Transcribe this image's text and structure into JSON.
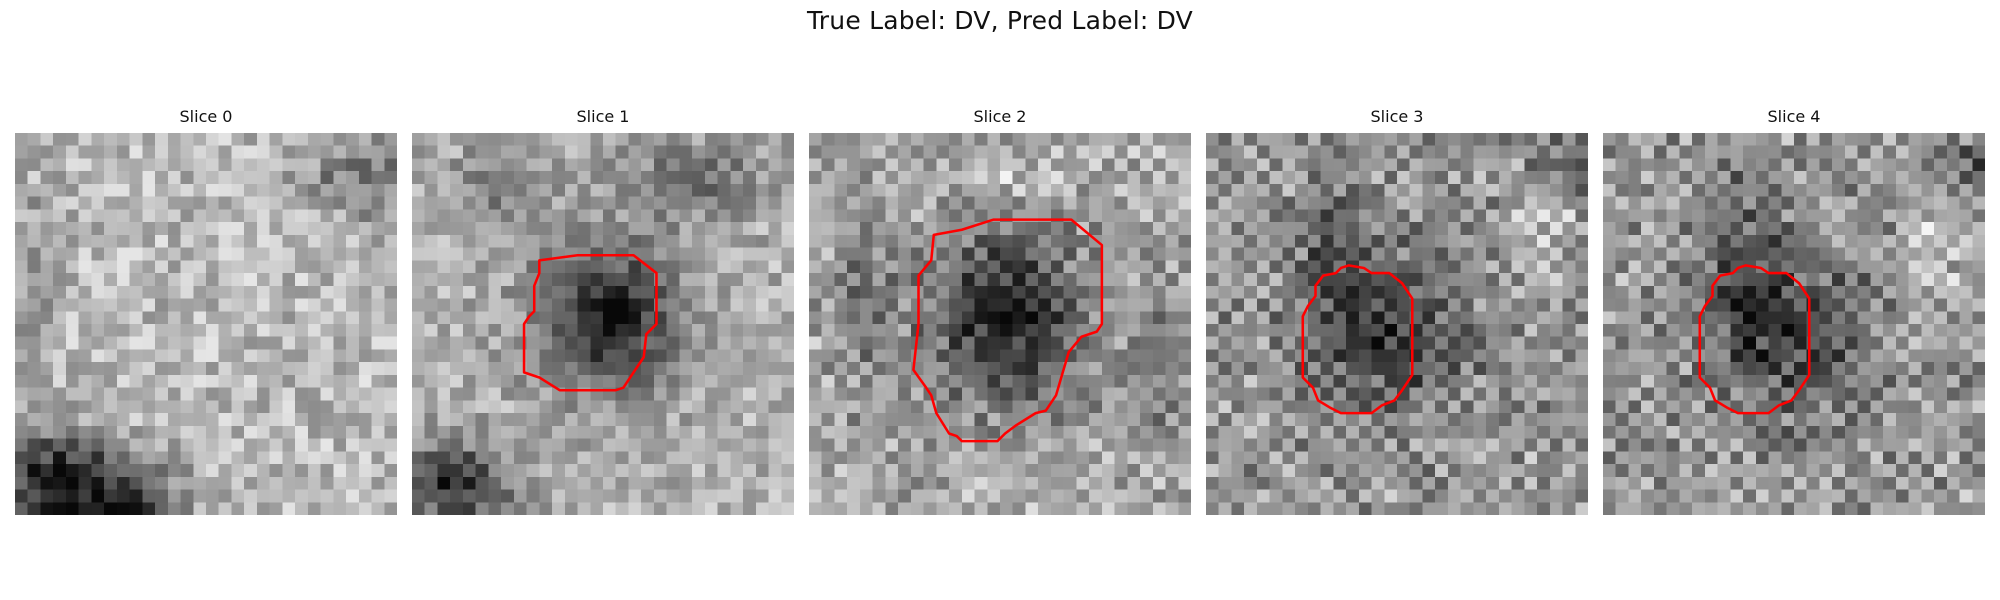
{
  "figure": {
    "title": "True Label: DV, Pred Label: DV"
  },
  "slices": [
    {
      "title": "Slice 0",
      "has_contour": false
    },
    {
      "title": "Slice 1",
      "has_contour": true
    },
    {
      "title": "Slice 2",
      "has_contour": true
    },
    {
      "title": "Slice 3",
      "has_contour": true
    },
    {
      "title": "Slice 4",
      "has_contour": true
    }
  ],
  "colors": {
    "contour": "#ff0000",
    "background": "#ffffff",
    "image_colormap": "gray"
  }
}
